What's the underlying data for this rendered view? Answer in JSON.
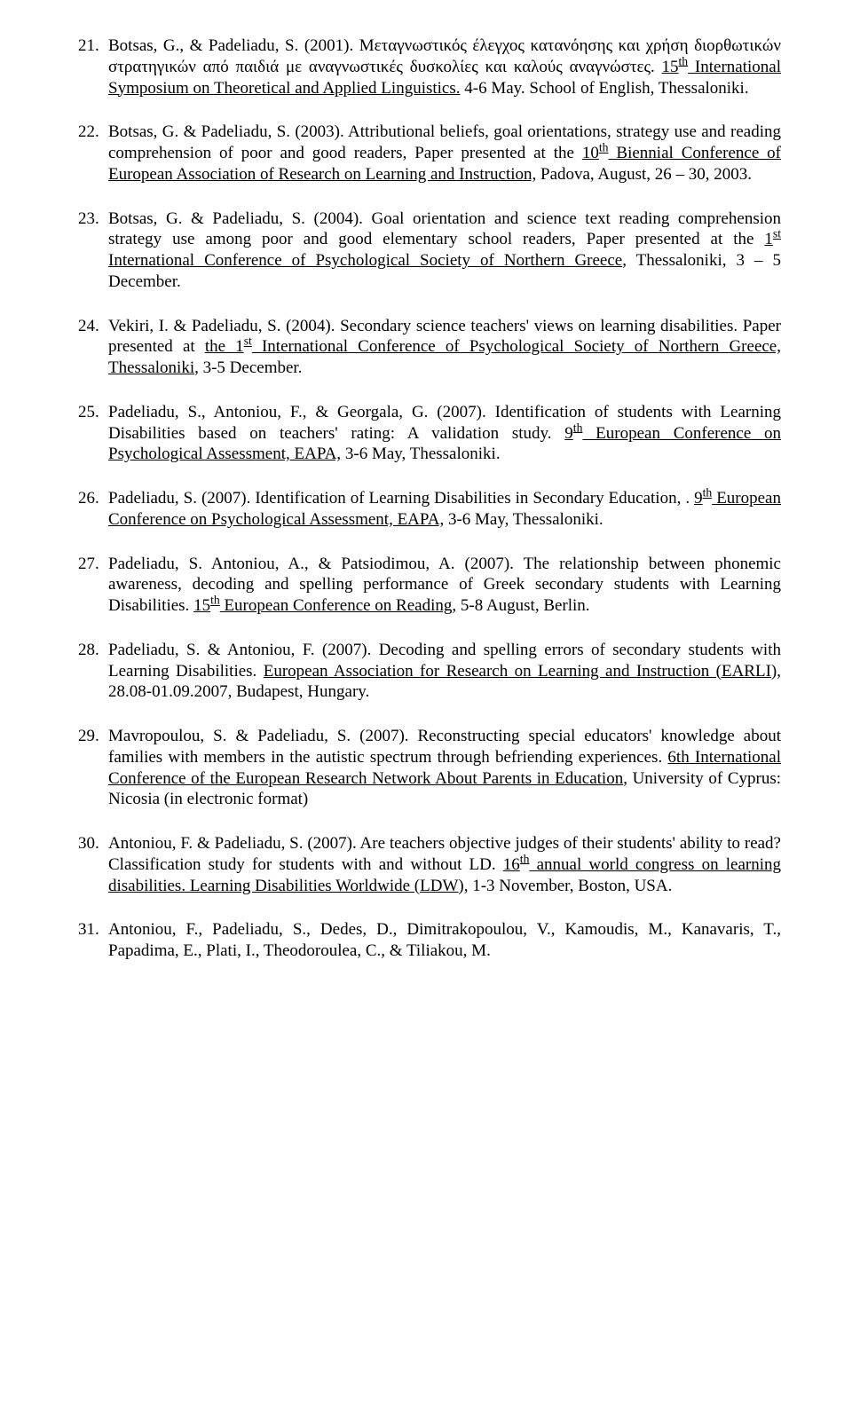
{
  "entries": [
    {
      "num": "21.",
      "pre": "Botsas, G., & Padeliadu, S. (2001). Μεταγνωστικός έλεγχος κατανόησης και χρήση διορθωτικών στρατηγικών από παιδιά με αναγνωστικές δυσκολίες και καλούς αναγνώστες. ",
      "u": "15",
      "sup": "th",
      "u2": " International Symposium on Theoretical and Applied Linguistics.",
      "post": " 4-6 May. School of English, Thessaloniki."
    },
    {
      "num": "22.",
      "pre": "Botsas, G. & Padeliadu, S. (2003). Attributional beliefs, goal orientations, strategy use and reading comprehension of poor and good readers, Paper presented at the ",
      "u": "10",
      "sup": "th",
      "u2": " Biennial Conference of European Association of Research on Learning and Instruction,",
      "post": " Padova, August, 26 – 30, 2003."
    },
    {
      "num": "23.",
      "pre": "Botsas, G. & Padeliadu, S. (2004). Goal orientation and science text reading comprehension strategy use among poor and good elementary school readers, Paper presented at the ",
      "u": "1",
      "sup": "st",
      "u2": " International Conference of Psychological Society of Northern Greece",
      "post": ", Thessaloniki, 3 – 5 December."
    },
    {
      "num": "24.",
      "pre": "Vekiri, I. & Padeliadu, S. (2004). Secondary science teachers' views on learning disabilities. Paper presented at ",
      "u": "the 1",
      "sup": "st",
      "u2": " International Conference of Psychological Society of Northern Greece, Thessaloniki",
      "post": ", 3-5 December."
    },
    {
      "num": "25.",
      "pre": "Padeliadu, S., Antoniou, F., & Georgala, G. (2007).  Identification of students with Learning Disabilities based on teachers' rating: A validation study. ",
      "u": "9",
      "sup": "th",
      "u2": " European Conference on Psychological Assessment, EAPA,",
      "post": " 3-6 May, Thessaloniki."
    },
    {
      "num": "26.",
      "pre": "Padeliadu, S. (2007).  Identification of Learning Disabilities in Secondary Education, . ",
      "u": "9",
      "sup": "th",
      "u2": " European Conference on Psychological Assessment, EAPA,",
      "post": " 3-6 May, Thessaloniki."
    },
    {
      "num": "27.",
      "pre": "Padeliadu, S. Antoniou, A., & Patsiodimou, A. (2007).  The relationship between phonemic awareness, decoding and spelling performance of Greek secondary students with Learning Disabilities. ",
      "u": "15",
      "sup": "th",
      "u2": " European Conference on Reading,",
      "post": " 5-8 August, Berlin."
    },
    {
      "num": "28.",
      "pre": "Padeliadu, S. & Antoniou, F. (2007). Decoding and spelling errors of secondary students with Learning Disabilities. ",
      "u": "European Association for Research on Learning and Instruction (EARLI),",
      "sup": "",
      "u2": "",
      "post": " 28.08-01.09.2007, Budapest, Hungary."
    },
    {
      "num": "29.",
      "pre": "Mavropoulou, S. & Padeliadu, S. (2007).  Reconstructing special educators' knowledge about families with members in the autistic spectrum through befriending experiences. ",
      "u": "6th International Conference of the European Research Network About Parents in Education",
      "sup": "",
      "u2": "",
      "post": ", University of Cyprus: Nicosia (in electronic format)"
    },
    {
      "num": "30.",
      "pre": "Antoniou, F. & Padeliadu, S. (2007). Are teachers objective judges of their students' ability to read? Classification study for students with and without LD. ",
      "u": "16",
      "sup": "th",
      "u2": " annual world congress on learning disabilities. Learning Disabilities Worldwide (LDW),",
      "post": " 1-3 November, Boston, USA."
    },
    {
      "num": "31.",
      "pre": "Antoniou, F., Padeliadu, S., Dedes, D., Dimitrakopoulou, V., Kamoudis, M., Kanavaris, T., Papadima, E., Plati, I., Theodoroulea, C., & Tiliakou, M. ",
      "u": "",
      "sup": "",
      "u2": "",
      "post": ""
    }
  ]
}
